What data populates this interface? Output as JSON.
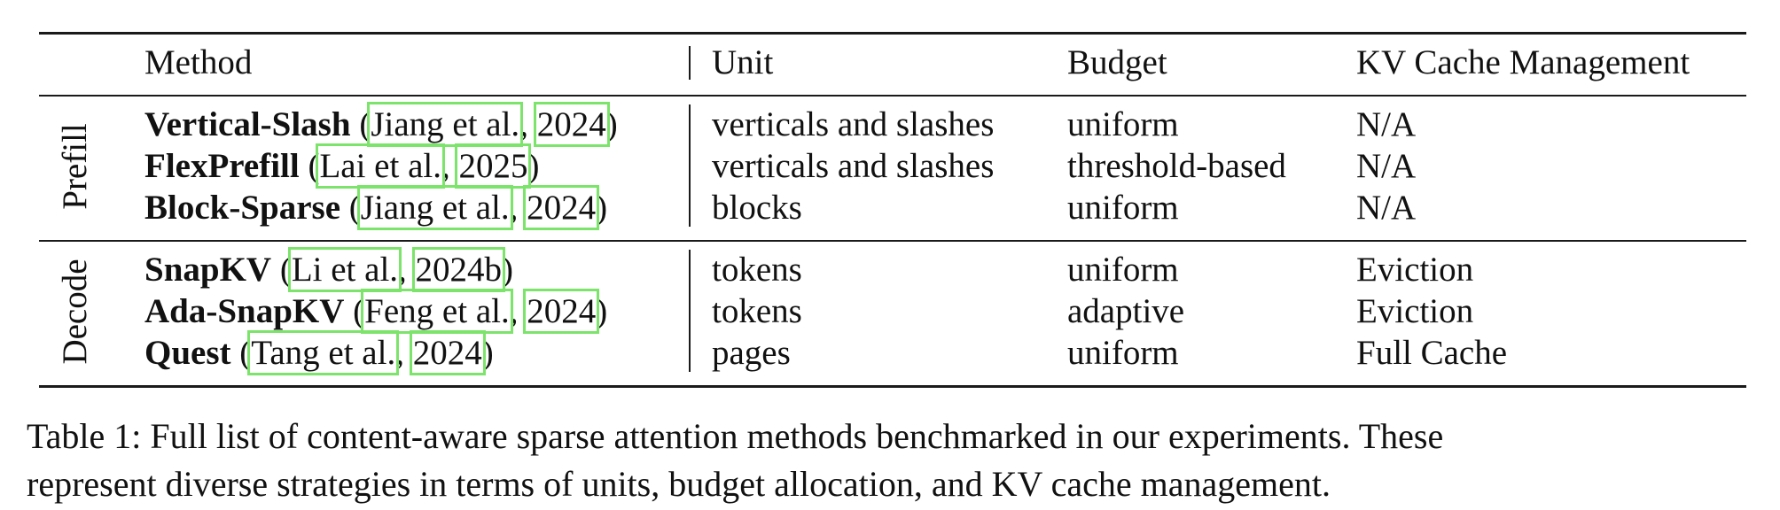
{
  "table": {
    "headers": {
      "method": "Method",
      "unit": "Unit",
      "budget": "Budget",
      "kv": "KV Cache Management"
    },
    "groups": [
      {
        "label": "Prefill",
        "rows": [
          {
            "name": "Vertical-Slash",
            "authors": "Jiang et al.",
            "year": "2024",
            "unit": "verticals and slashes",
            "budget": "uniform",
            "kv": "N/A"
          },
          {
            "name": "FlexPrefill",
            "authors": "Lai et al.",
            "year": "2025",
            "unit": "verticals and slashes",
            "budget": "threshold-based",
            "kv": "N/A"
          },
          {
            "name": "Block-Sparse",
            "authors": "Jiang et al.",
            "year": "2024",
            "unit": "blocks",
            "budget": "uniform",
            "kv": "N/A"
          }
        ]
      },
      {
        "label": "Decode",
        "rows": [
          {
            "name": "SnapKV",
            "authors": "Li et al.",
            "year": "2024b",
            "unit": "tokens",
            "budget": "uniform",
            "kv": "Eviction"
          },
          {
            "name": "Ada-SnapKV",
            "authors": "Feng et al.",
            "year": "2024",
            "unit": "tokens",
            "budget": "adaptive",
            "kv": "Eviction"
          },
          {
            "name": "Quest",
            "authors": "Tang et al.",
            "year": "2024",
            "unit": "pages",
            "budget": "uniform",
            "kv": "Full Cache"
          }
        ]
      }
    ]
  },
  "caption": {
    "line1": "Table 1: Full list of content-aware sparse attention methods benchmarked in our experiments. These",
    "line2": "represent diverse strategies in terms of units, budget allocation, and KV cache management."
  },
  "colors": {
    "rule": "#1a1a1a",
    "citation_highlight": "#7ce46a"
  }
}
